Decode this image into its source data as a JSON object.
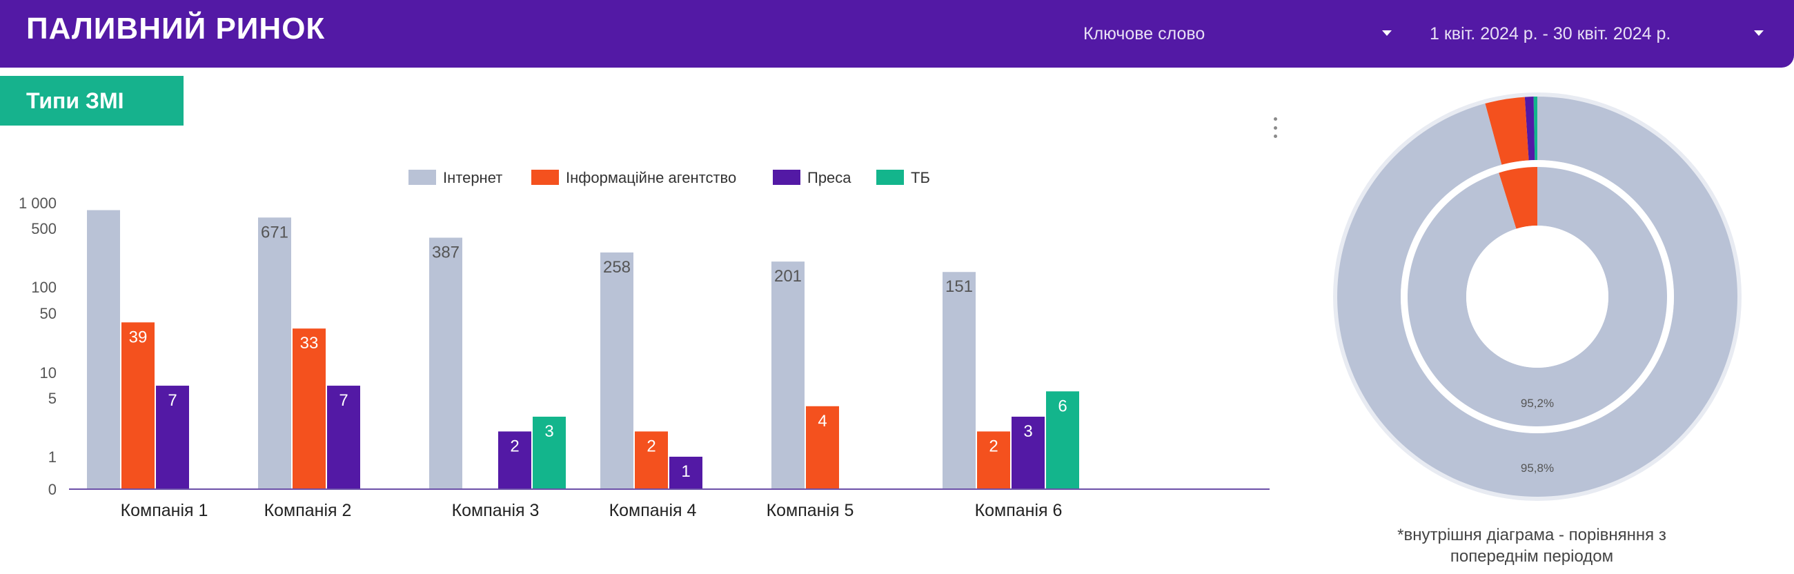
{
  "header": {
    "title": "ПАЛИВНИЙ РИНОК",
    "keyword_filter": "Ключове слово",
    "date_filter": "1 квіт. 2024 р. - 30 квіт. 2024 р."
  },
  "section": {
    "label": "Типи ЗМІ"
  },
  "icons": {
    "menu": "more-vertical-icon",
    "dropdown": "caret-down-icon"
  },
  "chart_data": [
    {
      "type": "bar",
      "scale": "log",
      "categories": [
        "Компанія 1",
        "Компанія 2",
        "Компанія 3",
        "Компанія 4",
        "Компанія 5",
        "Компанія 6"
      ],
      "series": [
        {
          "name": "Інтернет",
          "color": "#b9c2d6",
          "values": [
            820,
            671,
            387,
            258,
            201,
            151
          ],
          "labels": [
            "",
            "671",
            "387",
            "258",
            "201",
            "151"
          ]
        },
        {
          "name": "Інформаційне агентство",
          "color": "#f4511e",
          "values": [
            39,
            33,
            null,
            2,
            4,
            2
          ],
          "labels": [
            "39",
            "33",
            "",
            "2",
            "4",
            "2"
          ]
        },
        {
          "name": "Преса",
          "color": "#5319a5",
          "values": [
            7,
            7,
            2,
            1,
            null,
            3
          ],
          "labels": [
            "7",
            "7",
            "2",
            "1",
            "",
            "3"
          ]
        },
        {
          "name": "ТБ",
          "color": "#13b58c",
          "values": [
            null,
            null,
            3,
            null,
            null,
            6
          ],
          "labels": [
            "",
            "",
            "3",
            "",
            "",
            "6"
          ]
        }
      ],
      "y_ticks": [
        {
          "value": 1000,
          "label": "1 000"
        },
        {
          "value": 500,
          "label": "500"
        },
        {
          "value": 100,
          "label": "100"
        },
        {
          "value": 50,
          "label": "50"
        },
        {
          "value": 10,
          "label": "10"
        },
        {
          "value": 5,
          "label": "5"
        },
        {
          "value": 1,
          "label": "1"
        },
        {
          "value": 0,
          "label": "0"
        }
      ],
      "ylim": [
        0,
        1000
      ],
      "grid": false,
      "legend_position": "top"
    },
    {
      "type": "pie",
      "style": "double-donut",
      "outer": {
        "slices": [
          {
            "name": "Інтернет",
            "share": 95.8,
            "color": "#b9c2d6"
          },
          {
            "name": "Інформаційне агентство",
            "share": 3.2,
            "color": "#f4511e"
          },
          {
            "name": "Преса",
            "share": 0.7,
            "color": "#5319a5"
          },
          {
            "name": "ТБ",
            "share": 0.3,
            "color": "#13b58c"
          }
        ],
        "label": "95,8%"
      },
      "inner": {
        "slices": [
          {
            "name": "Інтернет",
            "share": 95.2,
            "color": "#b9c2d6"
          },
          {
            "name": "Інформаційне агентство",
            "share": 4.8,
            "color": "#f4511e"
          }
        ],
        "label": "95,2%"
      },
      "note": "*внутрішня діаграма - порівняння з попереднім періодом"
    }
  ]
}
